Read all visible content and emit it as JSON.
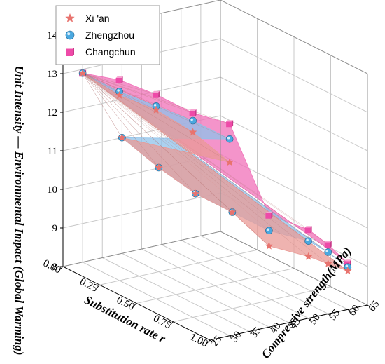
{
  "chart_data": {
    "type": "scatter",
    "subtype": "3d-surface-scatter",
    "zlabel": "Unit Intensity — Environmental Impact (Global Warming)",
    "xlabel": "Substitution rate r",
    "ylabel": "Compressive strength(MPa)",
    "xlim": [
      0,
      1
    ],
    "ylim": [
      25,
      65
    ],
    "zlim": [
      8,
      14
    ],
    "xticks": [
      "0.00",
      "0.25",
      "0.50",
      "0.75",
      "1.00"
    ],
    "yticks": [
      "25",
      "30",
      "35",
      "40",
      "45",
      "50",
      "55",
      "60",
      "65"
    ],
    "zticks": [
      "8",
      "9",
      "10",
      "11",
      "12",
      "13",
      "14"
    ],
    "grid": true,
    "legend_position": "top-left",
    "colors": {
      "xian": "#e8736e",
      "zhengzhou": "#4aa8e0",
      "changchun": "#ee4aa8",
      "surface_xian": "#e99a95",
      "surface_zhengzhou": "#8fc2ea",
      "surface_changchun": "#f070b8"
    },
    "series": [
      {
        "name": "Xi 'an",
        "marker": "star",
        "points": [
          {
            "x": 0.0,
            "y": 30,
            "z": 12.9
          },
          {
            "x": 0.25,
            "y": 30,
            "z": 12.8
          },
          {
            "x": 0.5,
            "y": 30,
            "z": 12.9
          },
          {
            "x": 0.75,
            "y": 30,
            "z": 12.8
          },
          {
            "x": 1.0,
            "y": 30,
            "z": 12.5
          },
          {
            "x": 0.0,
            "y": 40,
            "z": 11.0
          },
          {
            "x": 0.25,
            "y": 40,
            "z": 10.7
          },
          {
            "x": 0.5,
            "y": 40,
            "z": 10.5
          },
          {
            "x": 0.75,
            "y": 40,
            "z": 10.5
          },
          {
            "x": 1.0,
            "y": 40,
            "z": 10.1
          },
          {
            "x": 1.0,
            "y": 50,
            "z": 9.6
          },
          {
            "x": 1.0,
            "y": 55,
            "z": 9.3
          },
          {
            "x": 1.0,
            "y": 60,
            "z": 9.0
          }
        ]
      },
      {
        "name": "Zhengzhou",
        "marker": "sphere",
        "points": [
          {
            "x": 0.0,
            "y": 30,
            "z": 12.9
          },
          {
            "x": 0.25,
            "y": 30,
            "z": 12.9
          },
          {
            "x": 0.5,
            "y": 30,
            "z": 13.0
          },
          {
            "x": 0.75,
            "y": 30,
            "z": 13.1
          },
          {
            "x": 1.0,
            "y": 30,
            "z": 13.1
          },
          {
            "x": 0.0,
            "y": 40,
            "z": 11.0
          },
          {
            "x": 0.25,
            "y": 40,
            "z": 10.7
          },
          {
            "x": 0.5,
            "y": 40,
            "z": 10.5
          },
          {
            "x": 0.75,
            "y": 40,
            "z": 10.5
          },
          {
            "x": 1.0,
            "y": 40,
            "z": 10.5
          },
          {
            "x": 1.0,
            "y": 50,
            "z": 10.0
          },
          {
            "x": 1.0,
            "y": 55,
            "z": 9.6
          },
          {
            "x": 1.0,
            "y": 60,
            "z": 9.1
          }
        ]
      },
      {
        "name": "Changchun",
        "marker": "cube",
        "points": [
          {
            "x": 0.0,
            "y": 30,
            "z": 12.9
          },
          {
            "x": 0.25,
            "y": 30,
            "z": 13.2
          },
          {
            "x": 0.5,
            "y": 30,
            "z": 13.3
          },
          {
            "x": 0.75,
            "y": 30,
            "z": 13.3
          },
          {
            "x": 1.0,
            "y": 30,
            "z": 13.5
          },
          {
            "x": 1.0,
            "y": 40,
            "z": 10.9
          },
          {
            "x": 1.0,
            "y": 50,
            "z": 10.3
          },
          {
            "x": 1.0,
            "y": 55,
            "z": 9.8
          },
          {
            "x": 1.0,
            "y": 60,
            "z": 9.2
          }
        ]
      }
    ]
  }
}
